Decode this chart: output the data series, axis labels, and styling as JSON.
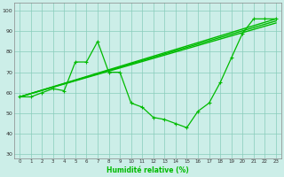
{
  "xlabel": "Humidité relative (%)",
  "background_color": "#cceee8",
  "grid_color": "#88ccbb",
  "line_color": "#00bb00",
  "xlim": [
    -0.5,
    23.5
  ],
  "ylim": [
    28,
    104
  ],
  "yticks": [
    30,
    40,
    50,
    60,
    70,
    80,
    90,
    100
  ],
  "xticks": [
    0,
    1,
    2,
    3,
    4,
    5,
    6,
    7,
    8,
    9,
    10,
    11,
    12,
    13,
    14,
    15,
    16,
    17,
    18,
    19,
    20,
    21,
    22,
    23
  ],
  "line1_x": [
    0,
    1,
    2,
    3,
    4,
    5,
    6,
    7,
    8,
    9,
    10,
    11,
    12,
    13,
    14,
    15,
    16,
    17,
    18,
    19,
    20,
    21,
    22,
    23
  ],
  "line1_y": [
    58,
    58,
    60,
    62,
    61,
    75,
    75,
    85,
    70,
    70,
    55,
    53,
    48,
    47,
    45,
    43,
    51,
    55,
    65,
    77,
    89,
    96,
    96,
    96
  ],
  "line2_x": [
    0,
    23
  ],
  "line2_y": [
    58,
    96
  ],
  "line3_x": [
    0,
    23
  ],
  "line3_y": [
    58,
    95
  ],
  "line4_x": [
    0,
    23
  ],
  "line4_y": [
    58,
    94
  ]
}
